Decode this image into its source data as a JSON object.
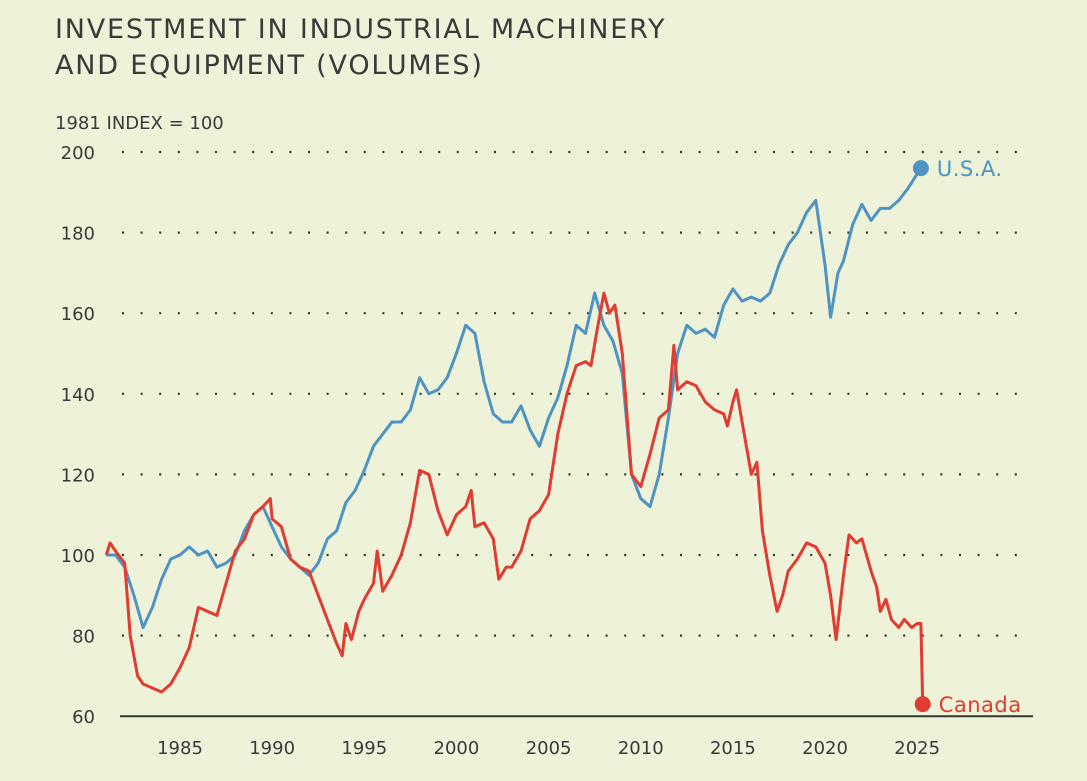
{
  "chart_data": {
    "type": "line",
    "title": "INVESTMENT IN INDUSTRIAL MACHINERY AND EQUIPMENT (VOLUMES)",
    "title_lines": [
      "INVESTMENT IN INDUSTRIAL MACHINERY",
      "AND EQUIPMENT (VOLUMES)"
    ],
    "ylabel": "1981 INDEX = 100",
    "xlabel": "",
    "ylim": [
      60,
      200
    ],
    "xlim": [
      1981,
      2030
    ],
    "yticks": [
      60,
      80,
      100,
      120,
      140,
      160,
      180,
      200
    ],
    "xticks": [
      1985,
      1990,
      1995,
      2000,
      2005,
      2010,
      2015,
      2020,
      2025
    ],
    "grid": "horizontal dotted",
    "series": [
      {
        "name": "U.S.A.",
        "color": "#4f93c2",
        "x": [
          1981,
          1981.5,
          1982,
          1982.5,
          1983,
          1983.5,
          1984,
          1984.5,
          1985,
          1985.5,
          1986,
          1986.5,
          1987,
          1987.5,
          1988,
          1988.5,
          1989,
          1989.5,
          1990,
          1990.5,
          1991,
          1991.5,
          1992,
          1992.5,
          1993,
          1993.5,
          1994,
          1994.5,
          1995,
          1995.5,
          1996,
          1996.5,
          1997,
          1997.5,
          1998,
          1998.5,
          1999,
          1999.5,
          2000,
          2000.5,
          2001,
          2001.5,
          2002,
          2002.5,
          2003,
          2003.5,
          2004,
          2004.5,
          2005,
          2005.5,
          2006,
          2006.5,
          2007,
          2007.5,
          2008,
          2008.5,
          2009,
          2009.5,
          2010,
          2010.5,
          2011,
          2011.5,
          2012,
          2012.5,
          2013,
          2013.5,
          2014,
          2014.5,
          2015,
          2015.5,
          2016,
          2016.5,
          2017,
          2017.5,
          2018,
          2018.5,
          2019,
          2019.5,
          2020,
          2020.3,
          2020.7,
          2021,
          2021.5,
          2022,
          2022.5,
          2023,
          2023.5,
          2024,
          2024.5,
          2025.2
        ],
        "values": [
          100,
          100,
          97,
          90,
          82,
          87,
          94,
          99,
          100,
          102,
          100,
          101,
          97,
          98,
          100,
          106,
          110,
          112,
          107,
          102,
          99,
          97,
          95,
          98,
          104,
          106,
          113,
          116,
          121,
          127,
          130,
          133,
          133,
          136,
          144,
          140,
          141,
          144,
          150,
          157,
          155,
          143,
          135,
          133,
          133,
          137,
          131,
          127,
          134,
          139,
          147,
          157,
          155,
          165,
          157,
          153,
          145,
          120,
          114,
          112,
          120,
          134,
          150,
          157,
          155,
          156,
          154,
          162,
          166,
          163,
          164,
          163,
          165,
          172,
          177,
          180,
          185,
          188,
          172,
          159,
          170,
          173,
          182,
          187,
          183,
          186,
          186,
          188,
          191,
          196
        ]
      },
      {
        "name": "Canada",
        "color": "#e03c31",
        "x": [
          1981,
          1981.2,
          1981.5,
          1982,
          1982.3,
          1982.7,
          1983,
          1983.5,
          1984,
          1984.5,
          1985,
          1985.5,
          1986,
          1986.5,
          1987,
          1987.5,
          1988,
          1988.5,
          1989,
          1989.5,
          1989.9,
          1990,
          1990.5,
          1991,
          1991.5,
          1992,
          1992.5,
          1993,
          1993.5,
          1993.8,
          1994,
          1994.3,
          1994.7,
          1995,
          1995.5,
          1995.7,
          1996,
          1996.5,
          1997,
          1997.5,
          1998,
          1998.5,
          1999,
          1999.5,
          2000,
          2000.5,
          2000.8,
          2001,
          2001.5,
          2002,
          2002.3,
          2002.7,
          2003,
          2003.5,
          2004,
          2004.5,
          2005,
          2005.5,
          2006,
          2006.5,
          2007,
          2007.3,
          2007.6,
          2008,
          2008.3,
          2008.6,
          2009,
          2009.5,
          2010,
          2010.5,
          2011,
          2011.5,
          2011.8,
          2012,
          2012.5,
          2013,
          2013.5,
          2014,
          2014.5,
          2014.7,
          2015,
          2015.2,
          2015.5,
          2016,
          2016.3,
          2016.6,
          2017,
          2017.4,
          2017.7,
          2018,
          2018.5,
          2019,
          2019.5,
          2020,
          2020.3,
          2020.6,
          2021,
          2021.3,
          2021.7,
          2022,
          2022.5,
          2022.8,
          2023,
          2023.3,
          2023.6,
          2024,
          2024.3,
          2024.7,
          2025.0,
          2025.2,
          2025.3
        ],
        "values": [
          100,
          103,
          101,
          98,
          80,
          70,
          68,
          67,
          66,
          68,
          72,
          77,
          87,
          86,
          85,
          93,
          101,
          104,
          110,
          112,
          114,
          109,
          107,
          99,
          97,
          96,
          90,
          84,
          78,
          75,
          83,
          79,
          86,
          89,
          93,
          101,
          91,
          95,
          100,
          108,
          121,
          120,
          111,
          105,
          110,
          112,
          116,
          107,
          108,
          104,
          94,
          97,
          97,
          101,
          109,
          111,
          115,
          130,
          140,
          147,
          148,
          147,
          155,
          165,
          160,
          162,
          150,
          120,
          117,
          125,
          134,
          136,
          152,
          141,
          143,
          142,
          138,
          136,
          135,
          132,
          138,
          141,
          133,
          120,
          123,
          106,
          95,
          86,
          90,
          96,
          99,
          103,
          102,
          98,
          90,
          79,
          95,
          105,
          103,
          104,
          96,
          92,
          86,
          89,
          84,
          82,
          84,
          82,
          83,
          83,
          63
        ]
      }
    ]
  }
}
